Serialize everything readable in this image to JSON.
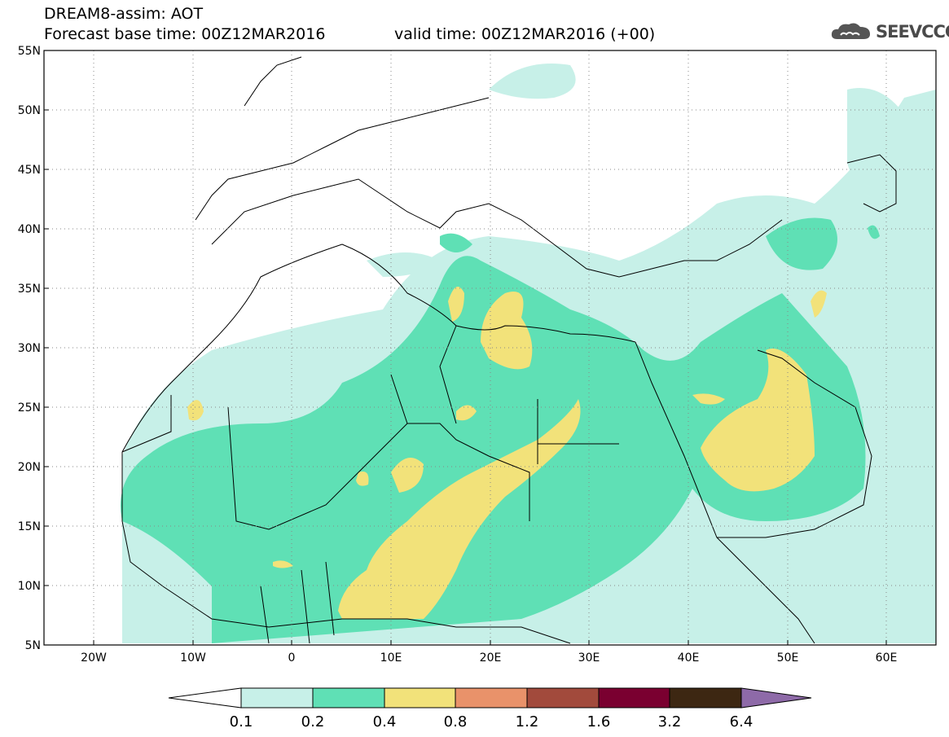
{
  "header": {
    "line1": "DREAM8-assim: AOT",
    "line2_left": "Forecast base time: 00Z12MAR2016",
    "line2_right": "valid time: 00Z12MAR2016 (+00)",
    "logo_text": "SEEVCCC"
  },
  "map": {
    "lon_range": [
      -25,
      65
    ],
    "lat_range": [
      5,
      55
    ],
    "lat_labels": [
      "55N",
      "50N",
      "45N",
      "40N",
      "35N",
      "30N",
      "25N",
      "20N",
      "15N",
      "10N",
      "5N"
    ],
    "lon_labels": [
      "20W",
      "10W",
      "0",
      "10E",
      "20E",
      "30E",
      "40E",
      "50E",
      "60E"
    ],
    "grid": "dotted",
    "cloud_icon": "cloud-icon"
  },
  "colorbar": {
    "labels": [
      "0.1",
      "0.2",
      "0.4",
      "0.8",
      "1.2",
      "1.6",
      "3.2",
      "6.4"
    ],
    "colors": [
      "#ffffff",
      "#c7f0e8",
      "#5fe0b5",
      "#f2e27a",
      "#e9926a",
      "#a24a3c",
      "#7a0030",
      "#3d2712",
      "#8e6aa8"
    ]
  },
  "legend_colors": {
    "l1": "#c7f0e8",
    "l2": "#5fe0b5",
    "l3": "#f2e27a"
  }
}
